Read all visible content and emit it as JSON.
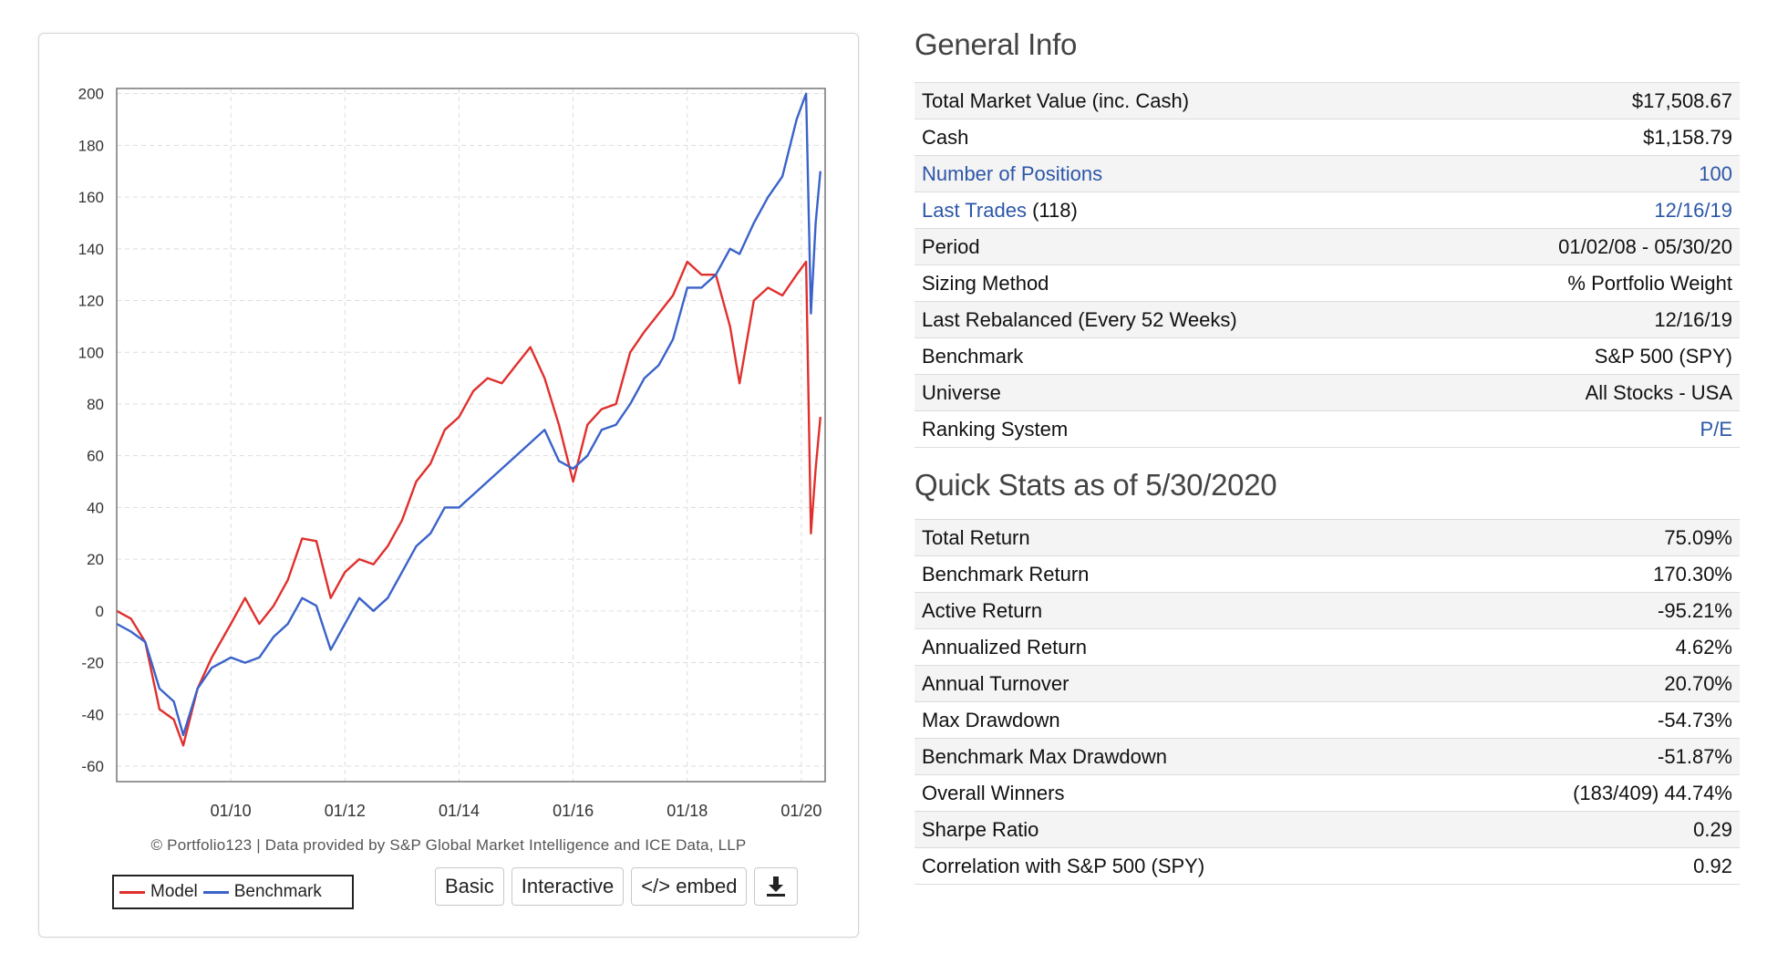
{
  "chart_data": {
    "type": "line",
    "x_ticks": [
      "01/10",
      "01/12",
      "01/14",
      "01/16",
      "01/18",
      "01/20"
    ],
    "y_ticks": [
      200,
      180,
      160,
      140,
      120,
      100,
      80,
      60,
      40,
      20,
      0,
      -20,
      -40,
      -60
    ],
    "ylim": [
      -66,
      202
    ],
    "xlim": [
      "2008-01",
      "2020-06"
    ],
    "grid": true,
    "legend_position": "bottom-left",
    "x": [
      "2008-01",
      "2008-04",
      "2008-07",
      "2008-10",
      "2009-01",
      "2009-03",
      "2009-06",
      "2009-09",
      "2010-01",
      "2010-04",
      "2010-07",
      "2010-10",
      "2011-01",
      "2011-04",
      "2011-07",
      "2011-10",
      "2012-01",
      "2012-04",
      "2012-07",
      "2012-10",
      "2013-01",
      "2013-04",
      "2013-07",
      "2013-10",
      "2014-01",
      "2014-04",
      "2014-07",
      "2014-10",
      "2015-01",
      "2015-04",
      "2015-07",
      "2015-10",
      "2016-01",
      "2016-04",
      "2016-07",
      "2016-10",
      "2017-01",
      "2017-04",
      "2017-07",
      "2017-10",
      "2018-01",
      "2018-04",
      "2018-07",
      "2018-10",
      "2018-12",
      "2019-03",
      "2019-06",
      "2019-09",
      "2019-12",
      "2020-02",
      "2020-03",
      "2020-04",
      "2020-05"
    ],
    "series": [
      {
        "name": "Model",
        "color": "#e0302d",
        "values": [
          0,
          -3,
          -12,
          -38,
          -42,
          -52,
          -30,
          -18,
          -5,
          5,
          -5,
          2,
          12,
          28,
          27,
          5,
          15,
          20,
          18,
          25,
          35,
          50,
          57,
          70,
          75,
          85,
          90,
          88,
          95,
          102,
          90,
          72,
          50,
          72,
          78,
          80,
          100,
          108,
          115,
          122,
          135,
          130,
          130,
          110,
          88,
          120,
          125,
          122,
          130,
          135,
          30,
          55,
          75
        ]
      },
      {
        "name": "Benchmark",
        "color": "#3a62c9",
        "values": [
          -5,
          -8,
          -12,
          -30,
          -35,
          -48,
          -30,
          -22,
          -18,
          -20,
          -18,
          -10,
          -5,
          5,
          2,
          -15,
          -5,
          5,
          0,
          5,
          15,
          25,
          30,
          40,
          40,
          45,
          50,
          55,
          60,
          65,
          70,
          58,
          55,
          60,
          70,
          72,
          80,
          90,
          95,
          105,
          125,
          125,
          130,
          140,
          138,
          150,
          160,
          168,
          190,
          200,
          115,
          150,
          170
        ]
      }
    ]
  },
  "credit": "© Portfolio123 | Data provided by S&P Global Market Intelligence and ICE Data, LLP",
  "legend": {
    "model": "Model",
    "benchmark": "Benchmark"
  },
  "buttons": {
    "basic": "Basic",
    "interactive": "Interactive",
    "embed": "</> embed",
    "download_icon": "download-icon"
  },
  "general_info": {
    "title": "General Info",
    "rows": [
      {
        "label": "Total Market Value (inc. Cash)",
        "value": "$17,508.67"
      },
      {
        "label": "Cash",
        "value": "$1,158.79"
      },
      {
        "label": "Number of Positions",
        "value": "100"
      },
      {
        "label": "Last Trades",
        "label_suffix": "(118)",
        "value": "12/16/19"
      },
      {
        "label": "Period",
        "value": "01/02/08 - 05/30/20"
      },
      {
        "label": "Sizing Method",
        "value": "% Portfolio Weight"
      },
      {
        "label": "Last Rebalanced (Every 52 Weeks)",
        "value": "12/16/19"
      },
      {
        "label": "Benchmark",
        "value": "S&P 500 (SPY)"
      },
      {
        "label": "Universe",
        "value": "All Stocks - USA"
      },
      {
        "label": "Ranking System",
        "value": "P/E"
      }
    ]
  },
  "quick_stats": {
    "title": "Quick Stats as of 5/30/2020",
    "rows": [
      {
        "label": "Total Return",
        "value": "75.09%"
      },
      {
        "label": "Benchmark Return",
        "value": "170.30%"
      },
      {
        "label": "Active Return",
        "value": "-95.21%"
      },
      {
        "label": "Annualized Return",
        "value": "4.62%"
      },
      {
        "label": "Annual Turnover",
        "value": "20.70%"
      },
      {
        "label": "Max Drawdown",
        "value": "-54.73%"
      },
      {
        "label": "Benchmark Max Drawdown",
        "value": "-51.87%"
      },
      {
        "label": "Overall Winners",
        "value": "(183/409) 44.74%"
      },
      {
        "label": "Sharpe Ratio",
        "value": "0.29"
      },
      {
        "label": "Correlation with S&P 500 (SPY)",
        "value": "0.92"
      }
    ]
  },
  "colors": {
    "link": "#2c56a8",
    "negative": "#c0141c"
  }
}
